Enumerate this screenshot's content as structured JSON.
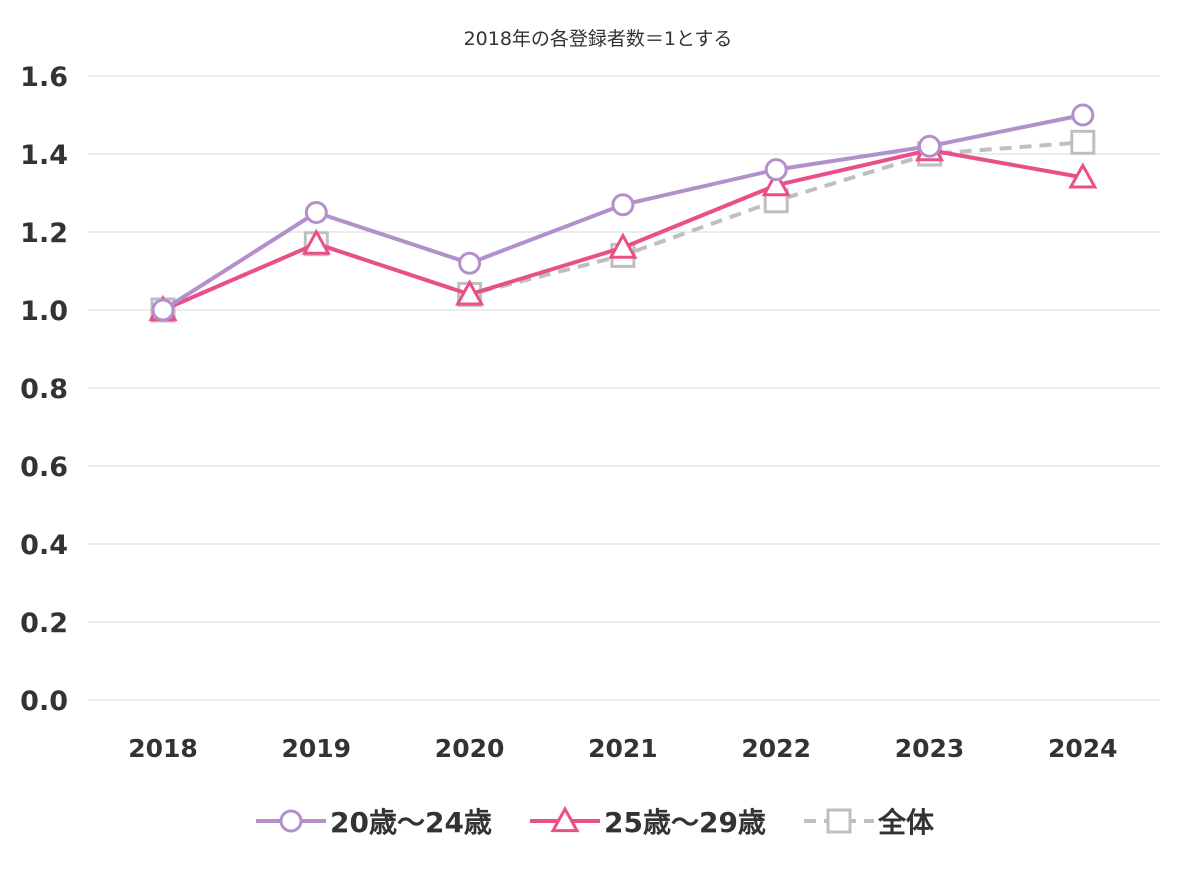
{
  "chart_data": {
    "type": "line",
    "title": "",
    "subtitle": "2018年の各登録者数＝1とする",
    "xlabel": "",
    "ylabel": "",
    "categories": [
      "2018",
      "2019",
      "2020",
      "2021",
      "2022",
      "2023",
      "2024"
    ],
    "ylim": [
      0,
      1.6
    ],
    "yticks": [
      0.0,
      0.2,
      0.4,
      0.6,
      0.8,
      1.0,
      1.2,
      1.4,
      1.6
    ],
    "ytick_labels": [
      "0.0",
      "0.2",
      "0.4",
      "0.6",
      "0.8",
      "1.0",
      "1.2",
      "1.4",
      "1.6"
    ],
    "grid": true,
    "legend_position": "bottom",
    "series": [
      {
        "name": "20歳～24歳",
        "values": [
          1.0,
          1.25,
          1.12,
          1.27,
          1.36,
          1.42,
          1.5
        ],
        "color": "#b390cc",
        "marker": "circle",
        "line_style": "solid"
      },
      {
        "name": "25歳～29歳",
        "values": [
          1.0,
          1.17,
          1.04,
          1.16,
          1.32,
          1.41,
          1.34
        ],
        "color": "#e9508a",
        "marker": "triangle",
        "line_style": "solid"
      },
      {
        "name": "全体",
        "values": [
          1.0,
          1.17,
          1.04,
          1.14,
          1.28,
          1.4,
          1.43
        ],
        "color": "#bfbfbf",
        "marker": "square",
        "line_style": "dashed"
      }
    ]
  }
}
